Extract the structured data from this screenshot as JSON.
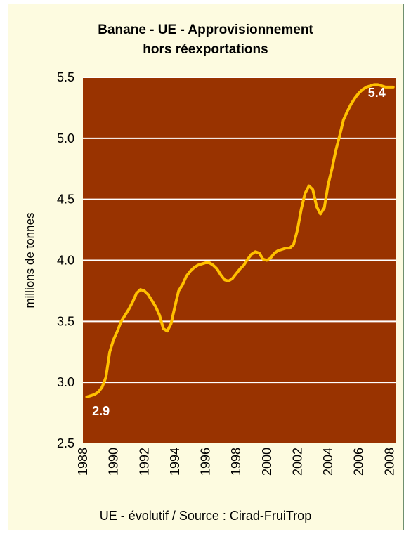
{
  "chart_data": {
    "type": "line",
    "title_line1": "Banane - UE - Approvisionnement",
    "title_line2": "hors réexportations",
    "ylabel": "millions de tonnes",
    "footer": "UE - évolutif / Source : Cirad-FruiTrop",
    "ylim": [
      2.5,
      5.5
    ],
    "xlim": [
      1988,
      2008.4
    ],
    "yticks": [
      "2.5",
      "3.0",
      "3.5",
      "4.0",
      "4.5",
      "5.0",
      "5.5"
    ],
    "xticks": [
      "1988",
      "1990",
      "1992",
      "1994",
      "1996",
      "1998",
      "2000",
      "2002",
      "2004",
      "2006",
      "2008"
    ],
    "grid": true,
    "plot_background": "#993300",
    "line_color": "#ffc000",
    "annotations": [
      {
        "text": "2.9",
        "x": 1988.6,
        "y": 2.73
      },
      {
        "text": "5.4",
        "x": 2006.6,
        "y": 5.34
      }
    ],
    "series": [
      {
        "x": [
          1988.25,
          1988.5,
          1988.75,
          1989.0,
          1989.25,
          1989.5,
          1989.75,
          1990.0,
          1990.25,
          1990.5,
          1990.75,
          1991.0,
          1991.25,
          1991.5,
          1991.75,
          1992.0,
          1992.25,
          1992.5,
          1992.75,
          1993.0,
          1993.25,
          1993.5,
          1993.75,
          1994.0,
          1994.25,
          1994.5,
          1994.75,
          1995.0,
          1995.25,
          1995.5,
          1995.75,
          1996.0,
          1996.25,
          1996.5,
          1996.75,
          1997.0,
          1997.25,
          1997.5,
          1997.75,
          1998.0,
          1998.25,
          1998.5,
          1998.75,
          1999.0,
          1999.25,
          1999.5,
          1999.75,
          2000.0,
          2000.25,
          2000.5,
          2000.75,
          2001.0,
          2001.25,
          2001.5,
          2001.75,
          2002.0,
          2002.25,
          2002.5,
          2002.75,
          2003.0,
          2003.25,
          2003.5,
          2003.75,
          2004.0,
          2004.25,
          2004.5,
          2004.75,
          2005.0,
          2005.25,
          2005.5,
          2005.75,
          2006.0,
          2006.25,
          2006.5,
          2006.75,
          2007.0,
          2007.25,
          2007.5,
          2007.75,
          2008.0,
          2008.25
        ],
        "y": [
          2.88,
          2.89,
          2.9,
          2.92,
          2.96,
          3.04,
          3.25,
          3.35,
          3.42,
          3.5,
          3.55,
          3.6,
          3.66,
          3.73,
          3.76,
          3.75,
          3.72,
          3.67,
          3.62,
          3.55,
          3.44,
          3.42,
          3.48,
          3.62,
          3.75,
          3.8,
          3.87,
          3.91,
          3.94,
          3.96,
          3.97,
          3.98,
          3.98,
          3.96,
          3.93,
          3.88,
          3.84,
          3.83,
          3.85,
          3.89,
          3.93,
          3.96,
          4.01,
          4.05,
          4.07,
          4.06,
          4.01,
          4.0,
          4.02,
          4.06,
          4.08,
          4.09,
          4.1,
          4.1,
          4.13,
          4.25,
          4.42,
          4.55,
          4.61,
          4.58,
          4.44,
          4.38,
          4.43,
          4.62,
          4.75,
          4.9,
          5.02,
          5.15,
          5.22,
          5.28,
          5.33,
          5.37,
          5.4,
          5.42,
          5.43,
          5.44,
          5.44,
          5.43,
          5.42,
          5.42,
          5.42
        ]
      }
    ]
  }
}
